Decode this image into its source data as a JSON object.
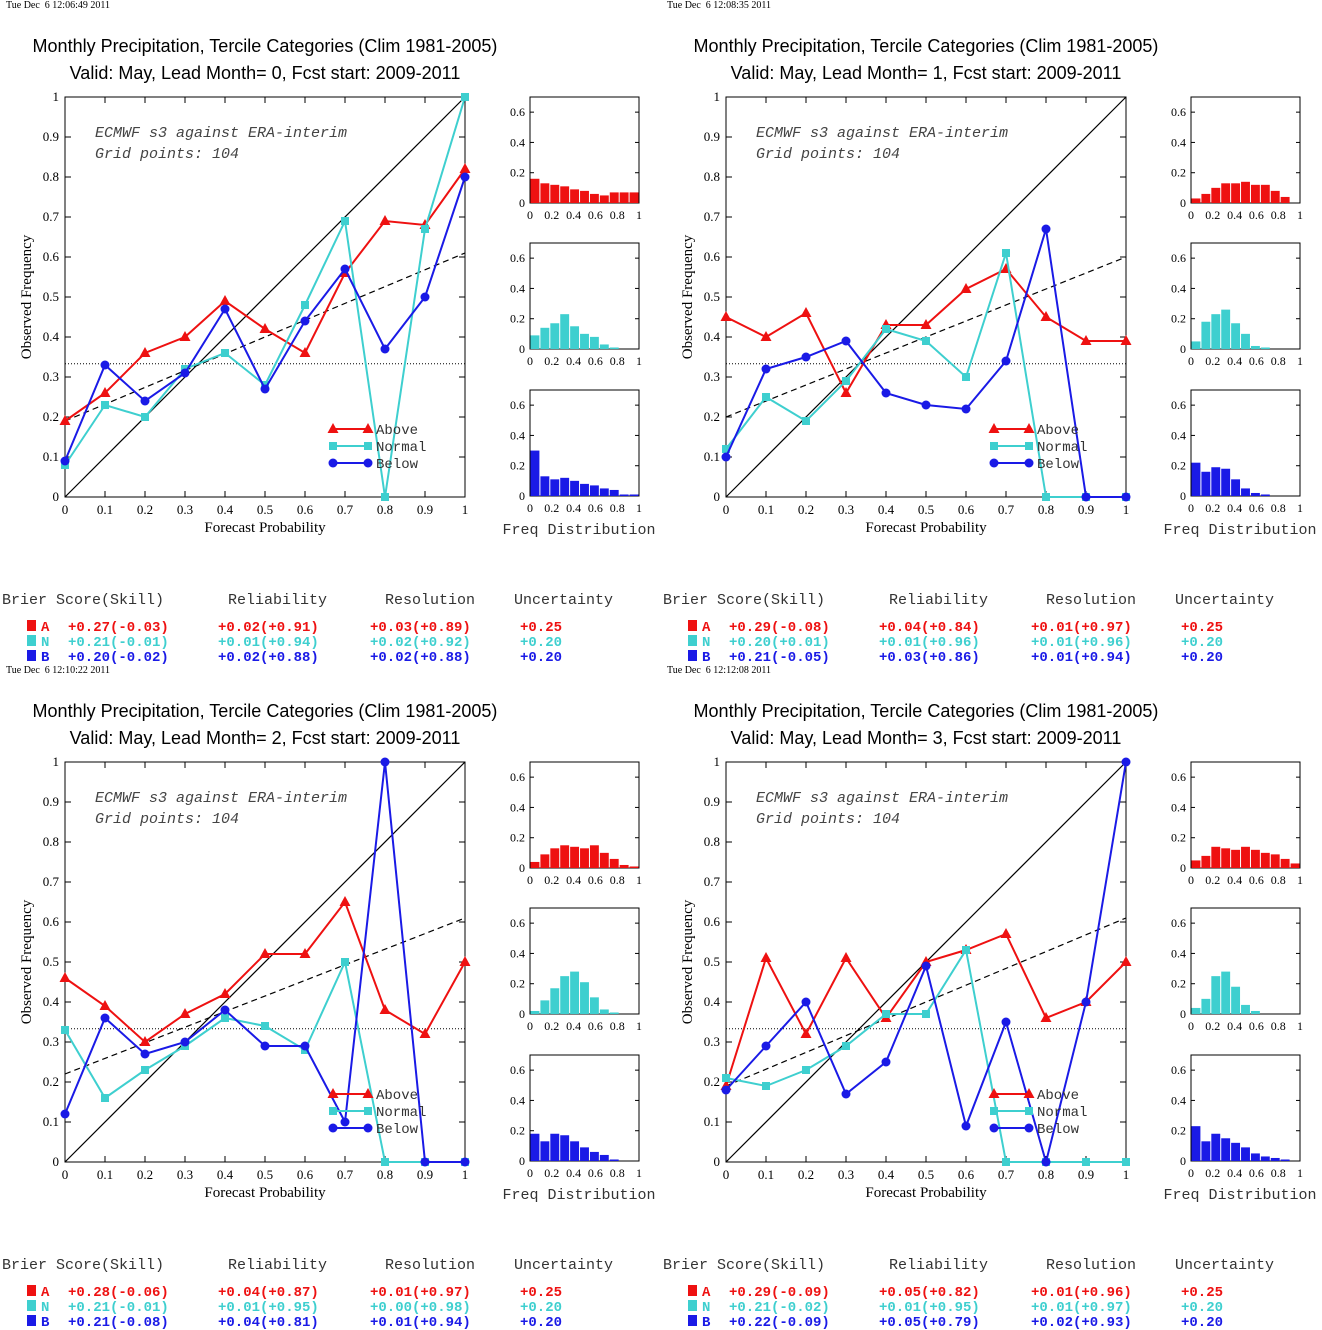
{
  "colors": {
    "A": "#ee1111",
    "N": "#3ecfcf",
    "B": "#1a1ae6"
  },
  "headers": [
    "Brier Score(Skill)",
    "Reliability",
    "Resolution",
    "Uncertainty"
  ],
  "chart_data": [
    {
      "type": "line",
      "timestamp": "Tue Dec  6 12:06:49 2011",
      "title": "Monthly Precipitation, Tercile Categories (Clim 1981-2005)",
      "subtitle": "Valid: May, Lead Month= 0, Fcst start: 2009-2011",
      "annotation1": "ECMWF s3 against ERA-interim",
      "annotation2": "Grid points:  104",
      "xlabel": "Forecast Probability",
      "ylabel": "Observed Frequency",
      "xlim": [
        0,
        1
      ],
      "ylim": [
        0,
        1
      ],
      "x": [
        0,
        0.1,
        0.2,
        0.3,
        0.4,
        0.5,
        0.6,
        0.7,
        0.8,
        0.9,
        1
      ],
      "series": [
        {
          "name": "Above",
          "values": [
            0.19,
            0.26,
            0.36,
            0.4,
            0.49,
            0.42,
            0.36,
            0.56,
            0.69,
            0.68,
            0.82
          ]
        },
        {
          "name": "Normal",
          "values": [
            0.08,
            0.23,
            0.2,
            0.32,
            0.36,
            0.28,
            0.48,
            0.69,
            0.0,
            0.67,
            1.0
          ]
        },
        {
          "name": "Below",
          "values": [
            0.09,
            0.33,
            0.24,
            0.31,
            0.47,
            0.27,
            0.44,
            0.57,
            0.37,
            0.5,
            0.8
          ]
        }
      ],
      "trend": [
        0.19,
        0.61
      ],
      "climatology": 0.333,
      "freq_xlabel": "Freq Distribution",
      "freq_ylim": [
        0,
        0.7
      ],
      "freq": {
        "Above": [
          0.16,
          0.13,
          0.12,
          0.11,
          0.09,
          0.08,
          0.06,
          0.05,
          0.07,
          0.07,
          0.07
        ],
        "Normal": [
          0.09,
          0.14,
          0.17,
          0.23,
          0.15,
          0.1,
          0.08,
          0.03,
          0.01,
          0.0,
          0.0
        ],
        "Below": [
          0.3,
          0.13,
          0.11,
          0.12,
          0.1,
          0.08,
          0.07,
          0.05,
          0.04,
          0.01,
          0.01
        ]
      },
      "scores": [
        {
          "cat": "A",
          "brier": "+0.27(-0.03)",
          "rel": "+0.02(+0.91)",
          "res": "+0.03(+0.89)",
          "unc": "+0.25"
        },
        {
          "cat": "N",
          "brier": "+0.21(-0.01)",
          "rel": "+0.01(+0.94)",
          "res": "+0.02(+0.92)",
          "unc": "+0.20"
        },
        {
          "cat": "B",
          "brier": "+0.20(-0.02)",
          "rel": "+0.02(+0.88)",
          "res": "+0.02(+0.88)",
          "unc": "+0.20"
        }
      ]
    },
    {
      "type": "line",
      "timestamp": "Tue Dec  6 12:08:35 2011",
      "title": "Monthly Precipitation, Tercile Categories (Clim 1981-2005)",
      "subtitle": "Valid: May, Lead Month= 1, Fcst start: 2009-2011",
      "annotation1": "ECMWF s3 against ERA-interim",
      "annotation2": "Grid points:  104",
      "xlabel": "Forecast Probability",
      "ylabel": "Observed Frequency",
      "xlim": [
        0,
        1
      ],
      "ylim": [
        0,
        1
      ],
      "x": [
        0,
        0.1,
        0.2,
        0.3,
        0.4,
        0.5,
        0.6,
        0.7,
        0.8,
        0.9,
        1
      ],
      "series": [
        {
          "name": "Above",
          "values": [
            0.45,
            0.4,
            0.46,
            0.26,
            0.43,
            0.43,
            0.52,
            0.57,
            0.45,
            0.39,
            0.39
          ]
        },
        {
          "name": "Normal",
          "values": [
            0.12,
            0.25,
            0.19,
            0.29,
            0.42,
            0.39,
            0.3,
            0.61,
            0.0,
            0.0,
            0.0
          ]
        },
        {
          "name": "Below",
          "values": [
            0.1,
            0.32,
            0.35,
            0.39,
            0.26,
            0.23,
            0.22,
            0.34,
            0.67,
            0.0,
            0.0
          ]
        }
      ],
      "trend": [
        0.2,
        0.6
      ],
      "climatology": 0.333,
      "freq_xlabel": "Freq Distribution",
      "freq_ylim": [
        0,
        0.7
      ],
      "freq": {
        "Above": [
          0.03,
          0.06,
          0.1,
          0.13,
          0.13,
          0.14,
          0.12,
          0.12,
          0.08,
          0.04,
          0.0
        ],
        "Normal": [
          0.05,
          0.18,
          0.23,
          0.26,
          0.17,
          0.1,
          0.02,
          0.01,
          0.0,
          0.0,
          0.0
        ],
        "Below": [
          0.22,
          0.16,
          0.19,
          0.18,
          0.11,
          0.05,
          0.02,
          0.01,
          0.0,
          0.0,
          0.0
        ]
      },
      "scores": [
        {
          "cat": "A",
          "brier": "+0.29(-0.08)",
          "rel": "+0.04(+0.84)",
          "res": "+0.01(+0.97)",
          "unc": "+0.25"
        },
        {
          "cat": "N",
          "brier": "+0.20(+0.01)",
          "rel": "+0.01(+0.96)",
          "res": "+0.01(+0.96)",
          "unc": "+0.20"
        },
        {
          "cat": "B",
          "brier": "+0.21(-0.05)",
          "rel": "+0.03(+0.86)",
          "res": "+0.01(+0.94)",
          "unc": "+0.20"
        }
      ]
    },
    {
      "type": "line",
      "timestamp": "Tue Dec  6 12:10:22 2011",
      "title": "Monthly Precipitation, Tercile Categories (Clim 1981-2005)",
      "subtitle": "Valid: May, Lead Month= 2, Fcst start: 2009-2011",
      "annotation1": "ECMWF s3 against ERA-interim",
      "annotation2": "Grid points:  104",
      "xlabel": "Forecast Probability",
      "ylabel": "Observed Frequency",
      "xlim": [
        0,
        1
      ],
      "ylim": [
        0,
        1
      ],
      "x": [
        0,
        0.1,
        0.2,
        0.3,
        0.4,
        0.5,
        0.6,
        0.7,
        0.8,
        0.9,
        1
      ],
      "series": [
        {
          "name": "Above",
          "values": [
            0.46,
            0.39,
            0.3,
            0.37,
            0.42,
            0.52,
            0.52,
            0.65,
            0.38,
            0.32,
            0.5
          ]
        },
        {
          "name": "Normal",
          "values": [
            0.33,
            0.16,
            0.23,
            0.29,
            0.36,
            0.34,
            0.28,
            0.5,
            0.0,
            0.0,
            0.0
          ]
        },
        {
          "name": "Below",
          "values": [
            0.12,
            0.36,
            0.27,
            0.3,
            0.38,
            0.29,
            0.29,
            0.1,
            1.0,
            0.0,
            0.0
          ]
        }
      ],
      "trend": [
        0.22,
        0.61
      ],
      "climatology": 0.333,
      "freq_xlabel": "Freq Distribution",
      "freq_ylim": [
        0,
        0.7
      ],
      "freq": {
        "Above": [
          0.04,
          0.09,
          0.13,
          0.15,
          0.14,
          0.13,
          0.15,
          0.1,
          0.06,
          0.02,
          0.01
        ],
        "Normal": [
          0.02,
          0.09,
          0.17,
          0.25,
          0.28,
          0.21,
          0.11,
          0.03,
          0.01,
          0.0,
          0.0
        ],
        "Below": [
          0.18,
          0.13,
          0.18,
          0.17,
          0.13,
          0.09,
          0.06,
          0.04,
          0.01,
          0.0,
          0.0
        ]
      },
      "scores": [
        {
          "cat": "A",
          "brier": "+0.28(-0.06)",
          "rel": "+0.04(+0.87)",
          "res": "+0.01(+0.97)",
          "unc": "+0.25"
        },
        {
          "cat": "N",
          "brier": "+0.21(-0.01)",
          "rel": "+0.01(+0.95)",
          "res": "+0.00(+0.98)",
          "unc": "+0.20"
        },
        {
          "cat": "B",
          "brier": "+0.21(-0.08)",
          "rel": "+0.04(+0.81)",
          "res": "+0.01(+0.94)",
          "unc": "+0.20"
        }
      ]
    },
    {
      "type": "line",
      "timestamp": "Tue Dec  6 12:12:08 2011",
      "title": "Monthly Precipitation, Tercile Categories (Clim 1981-2005)",
      "subtitle": "Valid: May, Lead Month= 3, Fcst start: 2009-2011",
      "annotation1": "ECMWF s3 against ERA-interim",
      "annotation2": "Grid points:  104",
      "xlabel": "Forecast Probability",
      "ylabel": "Observed Frequency",
      "xlim": [
        0,
        1
      ],
      "ylim": [
        0,
        1
      ],
      "x": [
        0,
        0.1,
        0.2,
        0.3,
        0.4,
        0.5,
        0.6,
        0.7,
        0.8,
        0.9,
        1
      ],
      "series": [
        {
          "name": "Above",
          "values": [
            0.19,
            0.51,
            0.32,
            0.51,
            0.36,
            0.5,
            0.53,
            0.57,
            0.36,
            0.4,
            0.5
          ]
        },
        {
          "name": "Normal",
          "values": [
            0.21,
            0.19,
            0.23,
            0.29,
            0.37,
            0.37,
            0.53,
            0.0,
            0.0,
            0.0,
            0.0
          ]
        },
        {
          "name": "Below",
          "values": [
            0.18,
            0.29,
            0.4,
            0.17,
            0.25,
            0.49,
            0.09,
            0.35,
            0.0,
            0.4,
            1.0
          ]
        }
      ],
      "trend": [
        0.19,
        0.61
      ],
      "climatology": 0.333,
      "freq_xlabel": "Freq Distribution",
      "freq_ylim": [
        0,
        0.7
      ],
      "freq": {
        "Above": [
          0.05,
          0.08,
          0.14,
          0.13,
          0.12,
          0.14,
          0.12,
          0.1,
          0.09,
          0.06,
          0.03
        ],
        "Normal": [
          0.04,
          0.1,
          0.25,
          0.28,
          0.18,
          0.06,
          0.02,
          0.0,
          0.0,
          0.0,
          0.0
        ],
        "Below": [
          0.23,
          0.13,
          0.18,
          0.15,
          0.12,
          0.09,
          0.05,
          0.03,
          0.02,
          0.01,
          0.0
        ]
      },
      "scores": [
        {
          "cat": "A",
          "brier": "+0.29(-0.09)",
          "rel": "+0.05(+0.82)",
          "res": "+0.01(+0.96)",
          "unc": "+0.25"
        },
        {
          "cat": "N",
          "brier": "+0.21(-0.02)",
          "rel": "+0.01(+0.95)",
          "res": "+0.01(+0.97)",
          "unc": "+0.20"
        },
        {
          "cat": "B",
          "brier": "+0.22(-0.09)",
          "rel": "+0.05(+0.79)",
          "res": "+0.02(+0.93)",
          "unc": "+0.20"
        }
      ]
    }
  ]
}
